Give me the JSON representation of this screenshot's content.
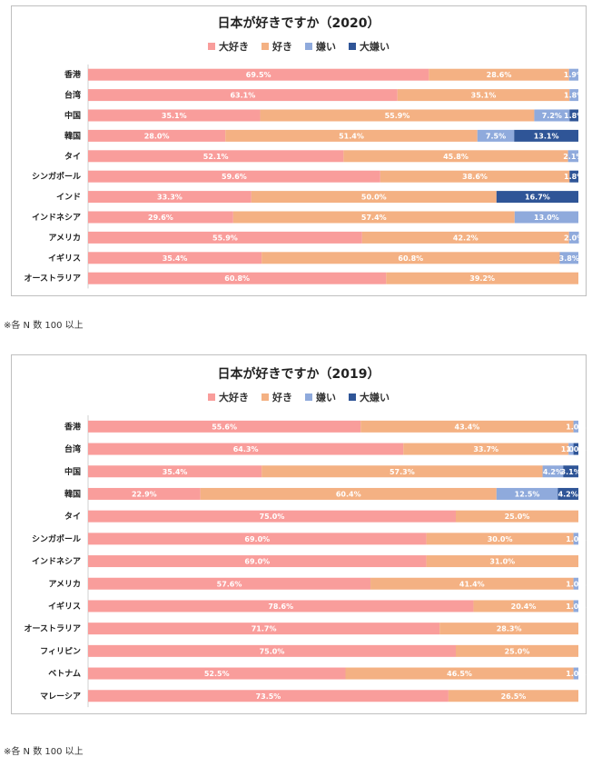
{
  "colors": {
    "dai_suki": "#f99d9b",
    "suki": "#f4b183",
    "kirai": "#8faadc",
    "dai_kirai": "#2f5597"
  },
  "charts": [
    {
      "title": "日本が好きですか（2020）",
      "legend": [
        "大好き",
        "好き",
        "嫌い",
        "大嫌い"
      ],
      "note": "※各 N 数 100 以上"
    },
    {
      "title": "日本が好きですか（2019）",
      "legend": [
        "大好き",
        "好き",
        "嫌い",
        "大嫌い"
      ],
      "note": "※各 N 数 100 以上"
    }
  ],
  "chart_data": [
    {
      "type": "bar",
      "orientation": "horizontal-stacked-100",
      "title": "日本が好きですか（2020）",
      "categories": [
        "香港",
        "台湾",
        "中国",
        "韓国",
        "タイ",
        "シンガポール",
        "インド",
        "インドネシア",
        "アメリカ",
        "イギリス",
        "オーストラリア"
      ],
      "series": [
        {
          "name": "大好き",
          "values": [
            69.5,
            63.1,
            35.1,
            28.0,
            52.1,
            59.6,
            33.3,
            29.6,
            55.9,
            35.4,
            60.8
          ],
          "labels": [
            "69.5%",
            "63.1%",
            "35.1%",
            "28.0%",
            "52.1%",
            "59.6%",
            "33.3%",
            "29.6%",
            "55.9%",
            "35.4%",
            "60.8%"
          ]
        },
        {
          "name": "好き",
          "values": [
            28.6,
            35.1,
            55.9,
            51.4,
            45.8,
            38.6,
            50.0,
            57.4,
            42.2,
            60.8,
            39.2
          ],
          "labels": [
            "28.6%",
            "35.1%",
            "55.9%",
            "51.4%",
            "45.8%",
            "38.6%",
            "50.0%",
            "57.4%",
            "42.2%",
            "60.8%",
            "39.2%"
          ]
        },
        {
          "name": "嫌い",
          "values": [
            1.9,
            1.8,
            7.2,
            7.5,
            2.1,
            0,
            0,
            13.0,
            2.0,
            3.8,
            0
          ],
          "labels": [
            "1.9%",
            "1.8%",
            "7.2%",
            "7.5%",
            "2.1%",
            "",
            "",
            "13.0%",
            "2.0%",
            "3.8%",
            ""
          ]
        },
        {
          "name": "大嫌い",
          "values": [
            0,
            0,
            1.8,
            13.1,
            0,
            1.8,
            16.7,
            0,
            0,
            0,
            0
          ],
          "labels": [
            "",
            "",
            "1.8%",
            "13.1%",
            "",
            "1.8%",
            "16.7%",
            "",
            "",
            "",
            ""
          ]
        }
      ],
      "xlim": [
        0,
        100
      ]
    },
    {
      "type": "bar",
      "orientation": "horizontal-stacked-100",
      "title": "日本が好きですか（2019）",
      "categories": [
        "香港",
        "台湾",
        "中国",
        "韓国",
        "タイ",
        "シンガポール",
        "インドネシア",
        "アメリカ",
        "イギリス",
        "オーストラリア",
        "フィリピン",
        "ベトナム",
        "マレーシア"
      ],
      "series": [
        {
          "name": "大好き",
          "values": [
            55.6,
            64.3,
            35.4,
            22.9,
            75.0,
            69.0,
            69.0,
            57.6,
            78.6,
            71.7,
            75.0,
            52.5,
            73.5
          ],
          "labels": [
            "55.6%",
            "64.3%",
            "35.4%",
            "22.9%",
            "75.0%",
            "69.0%",
            "69.0%",
            "57.6%",
            "78.6%",
            "71.7%",
            "75.0%",
            "52.5%",
            "73.5%"
          ]
        },
        {
          "name": "好き",
          "values": [
            43.4,
            33.7,
            57.3,
            60.4,
            25.0,
            30.0,
            31.0,
            41.4,
            20.4,
            28.3,
            25.0,
            46.5,
            26.5
          ],
          "labels": [
            "43.4%",
            "33.7%",
            "57.3%",
            "60.4%",
            "25.0%",
            "30.0%",
            "31.0%",
            "41.4%",
            "20.4%",
            "28.3%",
            "25.0%",
            "46.5%",
            "26.5%"
          ]
        },
        {
          "name": "嫌い",
          "values": [
            1.0,
            1.0,
            4.2,
            12.5,
            0,
            1.0,
            0,
            1.0,
            1.0,
            0,
            0,
            1.0,
            0
          ],
          "labels": [
            "1.0%",
            "1.0%",
            "4.2%",
            "12.5%",
            "",
            "1.0%",
            "",
            "1.0%",
            "1.0%",
            "",
            "",
            "1.0%",
            ""
          ]
        },
        {
          "name": "大嫌い",
          "values": [
            0,
            1.0,
            3.1,
            4.2,
            0,
            0,
            0,
            0,
            0,
            0,
            0,
            0,
            0
          ],
          "labels": [
            "",
            "1.0%",
            "3.1%",
            "4.2%",
            "",
            "",
            "",
            "",
            "",
            "",
            "",
            "",
            ""
          ]
        }
      ],
      "xlim": [
        0,
        100
      ]
    }
  ]
}
